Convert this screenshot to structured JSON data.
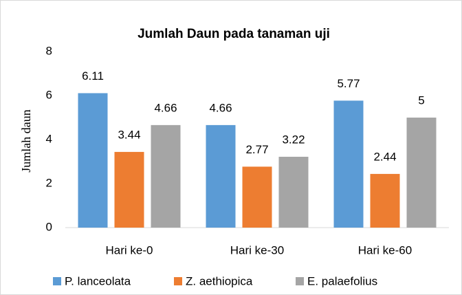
{
  "chart_data": {
    "type": "bar",
    "title": "Jumlah Daun pada tanaman uji",
    "y_label": "Jumlah daun",
    "categories": [
      "Hari ke-0",
      "Hari ke-30",
      "Hari ke-60"
    ],
    "series": [
      {
        "name": "P. lanceolata",
        "color": "#5b9bd5",
        "values": [
          6.11,
          4.66,
          5.77
        ]
      },
      {
        "name": "Z. aethiopica",
        "color": "#ed7d31",
        "values": [
          3.44,
          2.77,
          2.44
        ]
      },
      {
        "name": "E. palaefolius",
        "color": "#a5a5a5",
        "values": [
          4.66,
          3.22,
          5
        ]
      }
    ],
    "ylim": [
      0,
      8
    ],
    "yticks": [
      0,
      2,
      4,
      6,
      8
    ],
    "grid": false,
    "legend": "bottom"
  }
}
